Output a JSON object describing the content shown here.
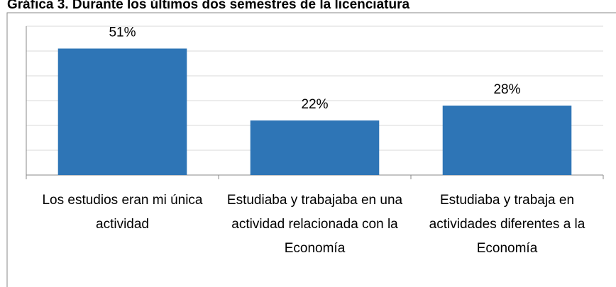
{
  "chart_data": {
    "type": "bar",
    "title": "Gráfica 3. Durante los últimos dos semestres de la licenciatura",
    "categories": [
      "Los estudios eran mi única actividad",
      "Estudiaba y trabajaba en una actividad relacionada con la Economía",
      "Estudiaba y trabaja en actividades diferentes a la Economía"
    ],
    "values": [
      51,
      22,
      28
    ],
    "value_labels": [
      "51%",
      "22%",
      "28%"
    ],
    "color": "#2e75b6",
    "ylim": [
      0,
      60
    ],
    "yticks": [
      0,
      10,
      20,
      30,
      40,
      50,
      60
    ],
    "grid": true
  }
}
